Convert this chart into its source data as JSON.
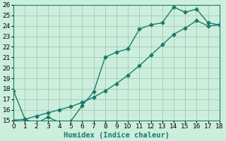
{
  "xlabel": "Humidex (Indice chaleur)",
  "bg_color": "#cceedd",
  "line_color": "#1a7a6a",
  "grid_color": "#aaccbb",
  "series1_x": [
    0,
    1,
    2,
    3,
    4,
    5,
    6,
    7,
    8,
    9,
    10,
    11,
    12,
    13,
    14,
    15,
    16,
    17,
    18
  ],
  "series1_y": [
    17.8,
    15.1,
    14.7,
    15.3,
    14.8,
    14.9,
    16.4,
    17.7,
    21.0,
    21.5,
    21.8,
    23.7,
    24.1,
    24.3,
    25.8,
    25.3,
    25.6,
    24.3,
    24.1
  ],
  "series2_x": [
    0,
    1,
    2,
    3,
    4,
    5,
    6,
    7,
    8,
    9,
    10,
    11,
    12,
    13,
    14,
    15,
    16,
    17,
    18
  ],
  "series2_y": [
    15.0,
    15.1,
    15.4,
    15.7,
    16.0,
    16.3,
    16.7,
    17.2,
    17.8,
    18.5,
    19.3,
    20.2,
    21.2,
    22.2,
    23.2,
    23.8,
    24.5,
    24.0,
    24.1
  ],
  "xlim": [
    0,
    18
  ],
  "ylim": [
    15,
    26
  ],
  "yticks": [
    15,
    16,
    17,
    18,
    19,
    20,
    21,
    22,
    23,
    24,
    25,
    26
  ],
  "xticks": [
    0,
    1,
    2,
    3,
    4,
    5,
    6,
    7,
    8,
    9,
    10,
    11,
    12,
    13,
    14,
    15,
    16,
    17,
    18
  ],
  "marker": "D",
  "marker_size": 2.5,
  "line_width": 1.0,
  "tick_fontsize": 6.5,
  "label_fontsize": 7.5
}
